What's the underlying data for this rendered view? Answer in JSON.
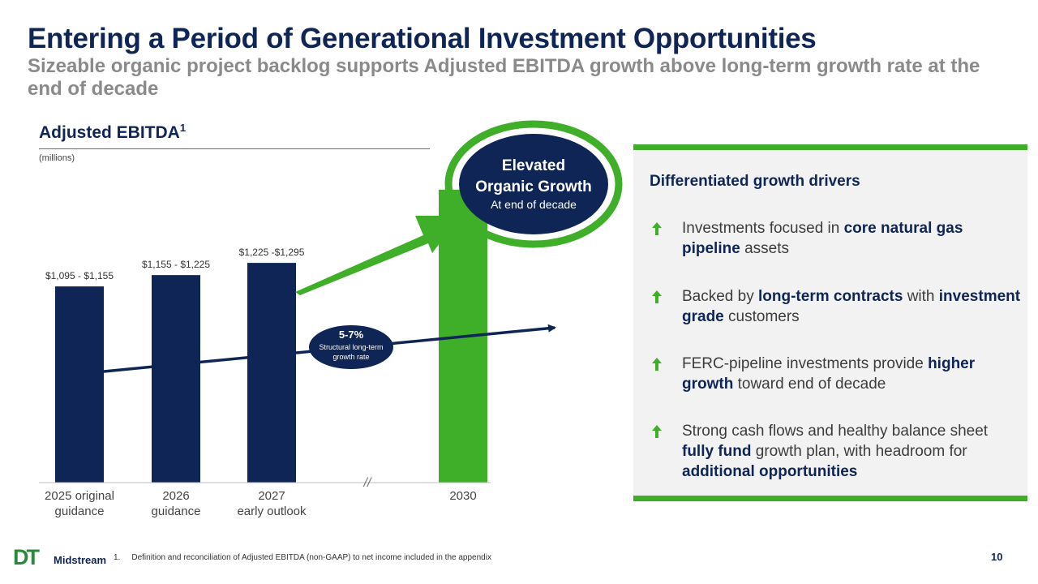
{
  "slide": {
    "title": "Entering a Period of Generational Investment Opportunities",
    "subtitle": "Sizeable organic project backlog supports Adjusted EBITDA growth above long-term growth rate at the end of decade",
    "page_number": "10"
  },
  "chart": {
    "heading": "Adjusted EBITDA",
    "heading_sup": "1",
    "unit": "(millions)",
    "callout": {
      "line1": "Elevated",
      "line2": "Organic Growth",
      "line3": "At end of decade"
    },
    "growth_badge": {
      "rate": "5-7%",
      "line1": "Structural long-term",
      "line2": "growth rate"
    },
    "axis_break": "//",
    "colors": {
      "navy": "#0f2555",
      "green": "#3fae29"
    }
  },
  "chart_data": {
    "type": "bar",
    "title": "Adjusted EBITDA",
    "ylabel": "(millions)",
    "categories": [
      [
        "2025 original",
        "guidance"
      ],
      [
        "2026",
        "guidance"
      ],
      [
        "2027",
        "early outlook"
      ],
      [
        "2030"
      ]
    ],
    "values": [
      1125,
      1190,
      1260,
      1680
    ],
    "value_labels": [
      "$1,095 - $1,155",
      "$1,155 - $1,225",
      "$1,225 -$1,295",
      ""
    ],
    "ylim": [
      0,
      2000
    ]
  },
  "panel": {
    "title": "Differentiated growth drivers",
    "drivers": [
      {
        "segments": [
          [
            "Investments focused in ",
            false
          ],
          [
            "core natural gas pipeline",
            true
          ],
          [
            " assets",
            false
          ]
        ]
      },
      {
        "segments": [
          [
            "Backed by ",
            false
          ],
          [
            "long-term contracts",
            true
          ],
          [
            " with ",
            false
          ],
          [
            "investment grade",
            true
          ],
          [
            " customers",
            false
          ]
        ]
      },
      {
        "segments": [
          [
            "FERC-pipeline investments provide ",
            false
          ],
          [
            "higher growth",
            true
          ],
          [
            " toward end of decade",
            false
          ]
        ]
      },
      {
        "segments": [
          [
            "Strong cash flows and healthy balance sheet ",
            false
          ],
          [
            "fully fund",
            true
          ],
          [
            " growth plan, with headroom for ",
            false
          ],
          [
            "additional opportunities",
            true
          ]
        ]
      }
    ]
  },
  "footer": {
    "logo_mark": "DT",
    "logo_text": "Midstream",
    "footnote_num": "1.",
    "footnote": "Definition and reconciliation of Adjusted EBITDA (non-GAAP) to net income included in the appendix"
  }
}
